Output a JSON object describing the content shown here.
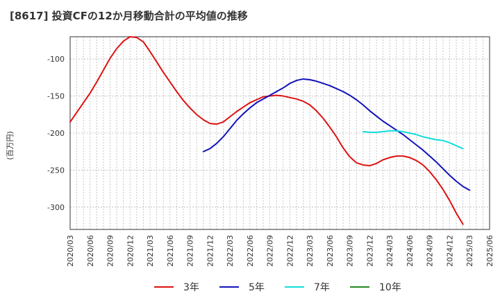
{
  "chart_data": {
    "type": "line",
    "title": "[8617]  投資CFの12か月移動合計の平均値の推移",
    "xlabel": "",
    "ylabel": "(百万円)",
    "ylim": [
      -330,
      -70
    ],
    "yticks": [
      -100,
      -150,
      -200,
      -250,
      -300
    ],
    "grid": true,
    "legend_position": "bottom",
    "x_tick_labels": [
      "2020/03",
      "2020/06",
      "2020/09",
      "2020/12",
      "2021/03",
      "2021/06",
      "2021/09",
      "2021/12",
      "2022/03",
      "2022/06",
      "2022/09",
      "2022/12",
      "2023/03",
      "2023/06",
      "2023/09",
      "2023/12",
      "2024/03",
      "2024/06",
      "2024/09",
      "2024/12",
      "2025/03",
      "2025/06"
    ],
    "x_months": [
      "2020/03",
      "2020/04",
      "2020/05",
      "2020/06",
      "2020/07",
      "2020/08",
      "2020/09",
      "2020/10",
      "2020/11",
      "2020/12",
      "2021/01",
      "2021/02",
      "2021/03",
      "2021/04",
      "2021/05",
      "2021/06",
      "2021/07",
      "2021/08",
      "2021/09",
      "2021/10",
      "2021/11",
      "2021/12",
      "2022/01",
      "2022/02",
      "2022/03",
      "2022/04",
      "2022/05",
      "2022/06",
      "2022/07",
      "2022/08",
      "2022/09",
      "2022/10",
      "2022/11",
      "2022/12",
      "2023/01",
      "2023/02",
      "2023/03",
      "2023/04",
      "2023/05",
      "2023/06",
      "2023/07",
      "2023/08",
      "2023/09",
      "2023/10",
      "2023/11",
      "2023/12",
      "2024/01",
      "2024/02",
      "2024/03",
      "2024/04",
      "2024/05",
      "2024/06",
      "2024/07",
      "2024/08",
      "2024/09",
      "2024/10",
      "2024/11",
      "2024/12",
      "2025/01",
      "2025/02",
      "2025/03"
    ],
    "series": [
      {
        "name": "3年",
        "color": "#dd1111",
        "start": "2020/03",
        "values": [
          -185,
          -172,
          -159,
          -146,
          -131,
          -115,
          -99,
          -86,
          -76,
          -70,
          -71,
          -77,
          -90,
          -104,
          -118,
          -131,
          -144,
          -156,
          -166,
          -175,
          -182,
          -187,
          -188,
          -185,
          -178,
          -171,
          -165,
          -159,
          -155,
          -151,
          -150,
          -149,
          -150,
          -152,
          -154,
          -157,
          -162,
          -170,
          -180,
          -192,
          -205,
          -220,
          -232,
          -240,
          -243,
          -244,
          -241,
          -236,
          -233,
          -231,
          -231,
          -233,
          -237,
          -243,
          -252,
          -263,
          -276,
          -291,
          -308,
          -323
        ]
      },
      {
        "name": "5年",
        "color": "#1111bb",
        "start": "2021/11",
        "values": [
          -225,
          -221,
          -214,
          -205,
          -194,
          -183,
          -174,
          -166,
          -159,
          -154,
          -149,
          -144,
          -139,
          -133,
          -129,
          -127,
          -128,
          -130,
          -133,
          -136,
          -140,
          -144,
          -149,
          -155,
          -162,
          -170,
          -177,
          -184,
          -190,
          -196,
          -202,
          -209,
          -216,
          -223,
          -231,
          -239,
          -248,
          -257,
          -265,
          -272,
          -277
        ]
      },
      {
        "name": "7年",
        "color": "#11dddd",
        "start": "2023/11",
        "values": [
          -198,
          -199,
          -199,
          -198,
          -197,
          -197,
          -198,
          -200,
          -202,
          -205,
          -207,
          -209,
          -210,
          -213,
          -217,
          -221
        ]
      },
      {
        "name": "10年",
        "color": "#228822",
        "start": "2023/11",
        "values": []
      }
    ]
  }
}
